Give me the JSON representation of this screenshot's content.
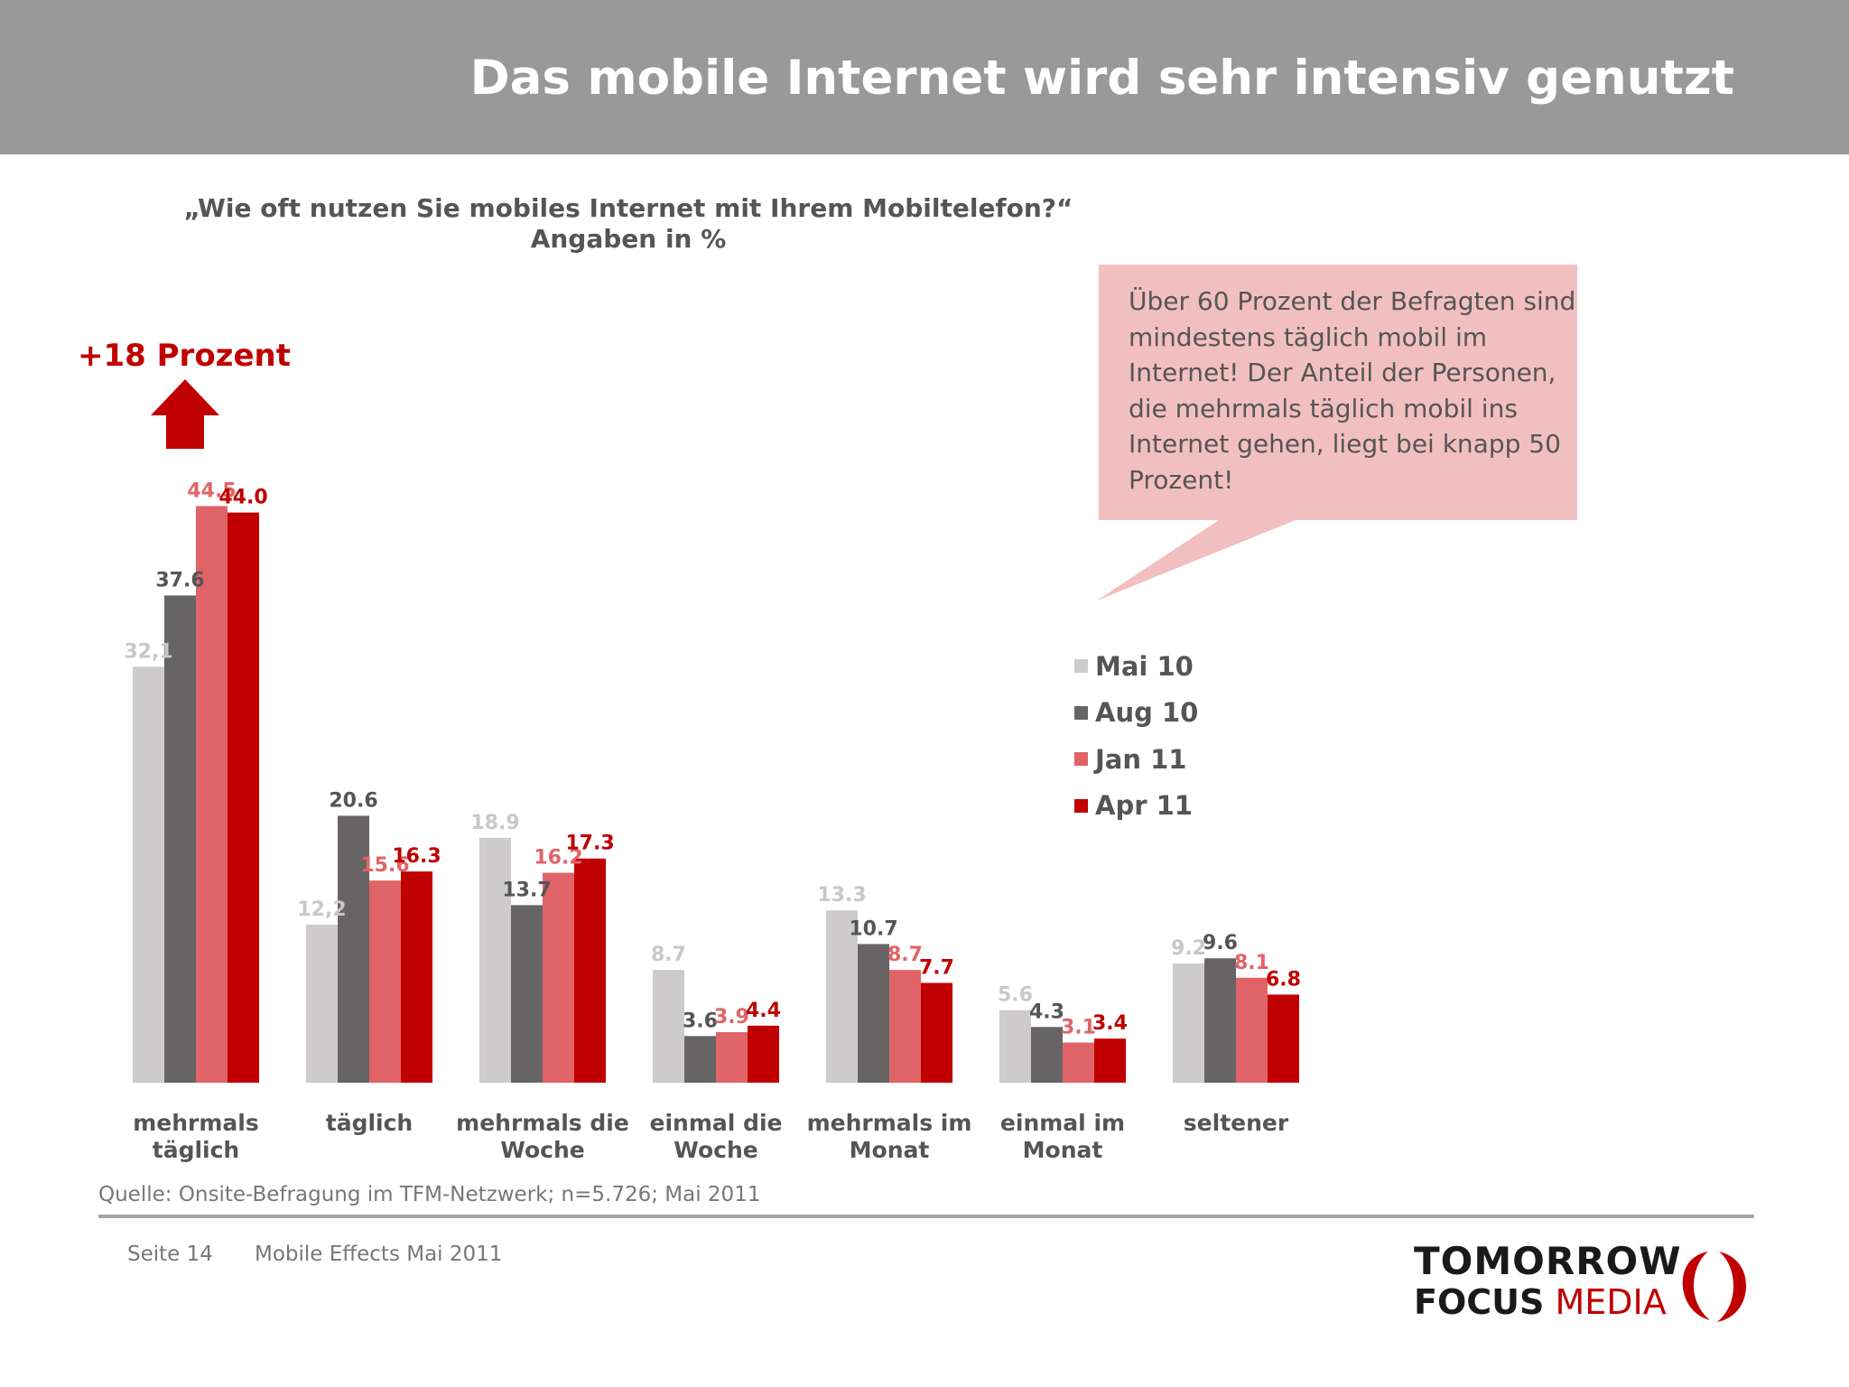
{
  "header": {
    "title": "Das mobile Internet wird sehr intensiv genutzt"
  },
  "question": "„Wie oft nutzen Sie mobiles Internet mit Ihrem Mobiltelefon?“",
  "subtitle": "Angaben in %",
  "growth": {
    "label": "+18 Prozent",
    "icon": "arrow-up-icon",
    "color": "#c00000"
  },
  "callout": {
    "text": "Über 60 Prozent der Befragten sind mindestens täglich mobil im Internet! Der Anteil der Personen, die mehrmals täglich mobil ins Internet gehen, liegt bei knapp 50 Prozent!",
    "background": "#f2bfc0"
  },
  "chart_data": {
    "type": "bar",
    "categories": [
      [
        "mehrmals",
        "täglich"
      ],
      [
        "täglich"
      ],
      [
        "mehrmals die",
        "Woche"
      ],
      [
        "einmal die",
        "Woche"
      ],
      [
        "mehrmals im",
        "Monat"
      ],
      [
        "einmal im",
        "Monat"
      ],
      [
        "seltener"
      ]
    ],
    "series": [
      {
        "name": "Mai 10",
        "color": "#cdcbcc",
        "values": [
          32.1,
          12.2,
          18.9,
          8.7,
          13.3,
          5.6,
          9.2
        ],
        "labels": [
          "32,1",
          "12,2",
          "18.9",
          "8.7",
          "13.3",
          "5.6",
          "9.2"
        ]
      },
      {
        "name": "Aug 10",
        "color": "#666465",
        "values": [
          37.6,
          20.6,
          13.7,
          3.6,
          10.7,
          4.3,
          9.6
        ],
        "labels": [
          "37.6",
          "20.6",
          "13.7",
          "3.6",
          "10.7",
          "4.3",
          "9.6"
        ]
      },
      {
        "name": "Jan 11",
        "color": "#e06467",
        "values": [
          44.5,
          15.6,
          16.2,
          3.9,
          8.7,
          3.1,
          8.1
        ],
        "labels": [
          "44.5",
          "15.6",
          "16.2",
          "3.9",
          "8.7",
          "3.1",
          "8.1"
        ]
      },
      {
        "name": "Apr 11",
        "color": "#c00000",
        "values": [
          44.0,
          16.3,
          17.3,
          4.4,
          7.7,
          3.4,
          6.8
        ],
        "labels": [
          "44.0",
          "16.3",
          "17.3",
          "4.4",
          "7.7",
          "3.4",
          "6.8"
        ]
      }
    ],
    "label_colors": [
      "#c9c7c8",
      "#555555",
      "#e06467",
      "#c00000"
    ],
    "ylim": [
      0,
      50
    ],
    "grid": false,
    "legend_position": "right"
  },
  "source": "Quelle: Onsite-Befragung im TFM-Netzwerk; n=5.726; Mai 2011",
  "footer": {
    "page": "Seite 14",
    "document": "Mobile Effects Mai 2011"
  },
  "logo": {
    "line1": "TOMORROW",
    "focus": "FOCUS",
    "media": "MEDIA"
  }
}
